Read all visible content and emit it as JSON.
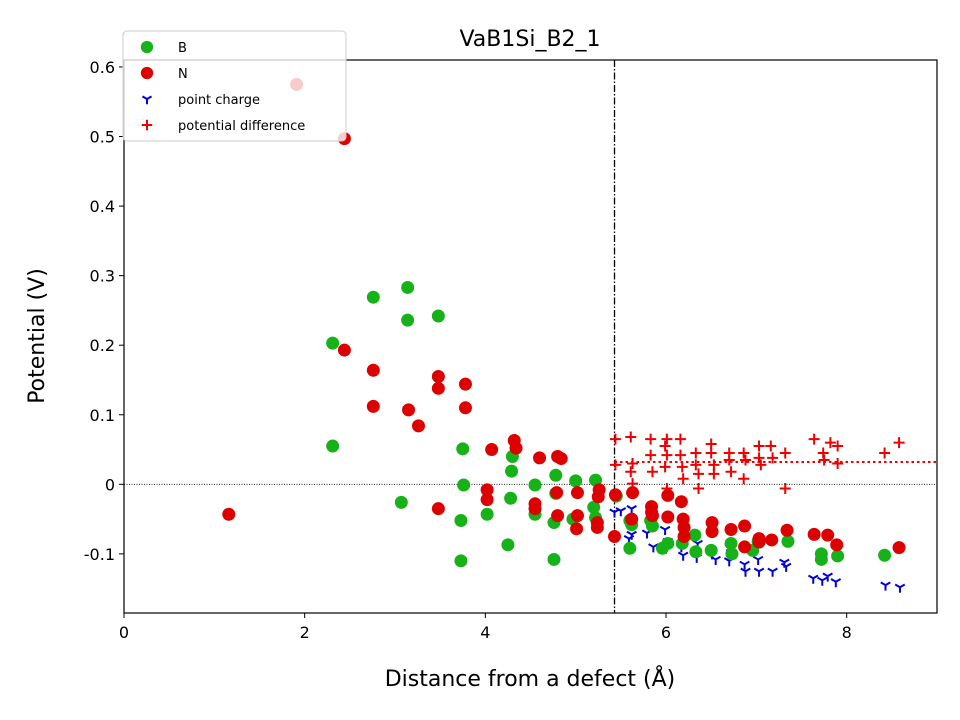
{
  "chart_data": {
    "type": "scatter",
    "title": "VaB1Si_B2_1",
    "xlabel": "Distance from a defect (Å)",
    "ylabel": "Potential (V)",
    "xlim": [
      0,
      9
    ],
    "ylim": [
      -0.185,
      0.61
    ],
    "x_ticks": [
      0,
      2,
      4,
      6,
      8
    ],
    "x_tick_labels": [
      "0",
      "2",
      "4",
      "6",
      "8"
    ],
    "y_ticks": [
      -0.1,
      0,
      0.1,
      0.2,
      0.3,
      0.4,
      0.5,
      0.6
    ],
    "y_tick_labels": [
      "-0.1",
      "0",
      "0.1",
      "0.2",
      "0.3",
      "0.4",
      "0.5",
      "0.6"
    ],
    "legend_position": "top-left",
    "vertical_line_x": 5.43,
    "horizontal_zero_line": true,
    "average_line": {
      "y": 0.032,
      "x_from": 5.43,
      "x_to": 9.0,
      "color": "#ee0000"
    },
    "colors": {
      "B": "#17b21a",
      "N": "#dd0000",
      "point charge": "#0000dd",
      "potential difference": "#ee0000"
    },
    "series": [
      {
        "name": "B",
        "marker": "circle",
        "points": [
          [
            2.31,
            0.203
          ],
          [
            2.31,
            0.055
          ],
          [
            2.76,
            0.269
          ],
          [
            3.14,
            0.283
          ],
          [
            3.14,
            0.236
          ],
          [
            3.48,
            0.242
          ],
          [
            3.07,
            -0.026
          ],
          [
            3.73,
            -0.052
          ],
          [
            3.73,
            -0.11
          ],
          [
            3.75,
            0.051
          ],
          [
            3.76,
            -0.001
          ],
          [
            4.02,
            -0.043
          ],
          [
            4.25,
            -0.087
          ],
          [
            4.28,
            -0.02
          ],
          [
            4.29,
            0.019
          ],
          [
            4.3,
            0.04
          ],
          [
            4.55,
            -0.043
          ],
          [
            4.55,
            -0.001
          ],
          [
            4.76,
            -0.108
          ],
          [
            4.76,
            -0.055
          ],
          [
            4.78,
            0.013
          ],
          [
            4.78,
            -0.013
          ],
          [
            4.97,
            -0.05
          ],
          [
            5.0,
            0.005
          ],
          [
            5.2,
            -0.033
          ],
          [
            5.22,
            0.006
          ],
          [
            5.22,
            -0.048
          ],
          [
            5.45,
            -0.017
          ],
          [
            5.6,
            -0.052
          ],
          [
            5.6,
            -0.092
          ],
          [
            5.62,
            -0.058
          ],
          [
            5.83,
            -0.052
          ],
          [
            5.85,
            -0.06
          ],
          [
            5.96,
            -0.092
          ],
          [
            6.02,
            -0.085
          ],
          [
            6.18,
            -0.085
          ],
          [
            6.32,
            -0.073
          ],
          [
            6.33,
            -0.097
          ],
          [
            6.5,
            -0.095
          ],
          [
            6.72,
            -0.085
          ],
          [
            6.73,
            -0.1
          ],
          [
            6.96,
            -0.095
          ],
          [
            7.02,
            -0.082
          ],
          [
            7.35,
            -0.082
          ],
          [
            7.72,
            -0.1
          ],
          [
            7.72,
            -0.108
          ],
          [
            7.9,
            -0.103
          ],
          [
            8.42,
            -0.102
          ]
        ]
      },
      {
        "name": "N",
        "marker": "circle",
        "points": [
          [
            1.16,
            -0.043
          ],
          [
            1.91,
            0.575
          ],
          [
            2.44,
            0.497
          ],
          [
            2.44,
            0.193
          ],
          [
            2.76,
            0.164
          ],
          [
            2.76,
            0.112
          ],
          [
            3.15,
            0.107
          ],
          [
            3.26,
            0.084
          ],
          [
            3.48,
            0.155
          ],
          [
            3.48,
            0.138
          ],
          [
            3.48,
            -0.035
          ],
          [
            3.78,
            0.144
          ],
          [
            3.78,
            0.11
          ],
          [
            4.02,
            -0.008
          ],
          [
            4.02,
            -0.022
          ],
          [
            4.07,
            0.05
          ],
          [
            4.32,
            0.063
          ],
          [
            4.34,
            0.052
          ],
          [
            4.55,
            -0.028
          ],
          [
            4.55,
            -0.035
          ],
          [
            4.6,
            0.038
          ],
          [
            4.79,
            -0.012
          ],
          [
            4.8,
            -0.045
          ],
          [
            4.8,
            0.04
          ],
          [
            4.84,
            0.037
          ],
          [
            5.01,
            -0.064
          ],
          [
            5.02,
            -0.045
          ],
          [
            5.02,
            -0.012
          ],
          [
            5.24,
            -0.055
          ],
          [
            5.24,
            -0.062
          ],
          [
            5.25,
            -0.018
          ],
          [
            5.26,
            -0.008
          ],
          [
            5.43,
            -0.075
          ],
          [
            5.44,
            -0.015
          ],
          [
            5.62,
            -0.05
          ],
          [
            5.63,
            -0.012
          ],
          [
            5.84,
            -0.032
          ],
          [
            5.84,
            -0.04
          ],
          [
            5.85,
            -0.045
          ],
          [
            6.02,
            -0.047
          ],
          [
            6.02,
            -0.016
          ],
          [
            6.17,
            -0.025
          ],
          [
            6.19,
            -0.05
          ],
          [
            6.2,
            -0.062
          ],
          [
            6.2,
            -0.075
          ],
          [
            6.51,
            -0.055
          ],
          [
            6.51,
            -0.068
          ],
          [
            6.72,
            -0.065
          ],
          [
            6.87,
            -0.06
          ],
          [
            6.87,
            -0.09
          ],
          [
            7.03,
            -0.078
          ],
          [
            7.03,
            -0.083
          ],
          [
            7.17,
            -0.08
          ],
          [
            7.34,
            -0.066
          ],
          [
            7.64,
            -0.072
          ],
          [
            7.79,
            -0.073
          ],
          [
            7.89,
            -0.087
          ],
          [
            8.58,
            -0.091
          ]
        ]
      },
      {
        "name": "point charge",
        "marker": "tri_down",
        "points": [
          [
            5.43,
            -0.04
          ],
          [
            5.5,
            -0.038
          ],
          [
            5.59,
            -0.078
          ],
          [
            5.62,
            -0.035
          ],
          [
            5.62,
            -0.072
          ],
          [
            5.79,
            -0.07
          ],
          [
            5.86,
            -0.09
          ],
          [
            5.99,
            -0.065
          ],
          [
            6.0,
            -0.092
          ],
          [
            6.02,
            -0.082
          ],
          [
            6.17,
            -0.09
          ],
          [
            6.19,
            -0.102
          ],
          [
            6.34,
            -0.105
          ],
          [
            6.35,
            -0.085
          ],
          [
            6.51,
            -0.1
          ],
          [
            6.55,
            -0.108
          ],
          [
            6.7,
            -0.11
          ],
          [
            6.72,
            -0.098
          ],
          [
            6.87,
            -0.115
          ],
          [
            6.88,
            -0.125
          ],
          [
            7.02,
            -0.108
          ],
          [
            7.03,
            -0.125
          ],
          [
            7.18,
            -0.125
          ],
          [
            7.31,
            -0.112
          ],
          [
            7.33,
            -0.118
          ],
          [
            7.63,
            -0.135
          ],
          [
            7.73,
            -0.138
          ],
          [
            7.79,
            -0.132
          ],
          [
            7.88,
            -0.14
          ],
          [
            8.43,
            -0.145
          ],
          [
            8.59,
            -0.148
          ]
        ]
      },
      {
        "name": "potential difference",
        "marker": "plus",
        "points": [
          [
            5.44,
            0.065
          ],
          [
            5.44,
            0.028
          ],
          [
            5.61,
            0.068
          ],
          [
            5.61,
            0.018
          ],
          [
            5.63,
            0.03
          ],
          [
            5.63,
            0.001
          ],
          [
            5.83,
            0.065
          ],
          [
            5.83,
            0.042
          ],
          [
            5.85,
            0.018
          ],
          [
            5.99,
            0.055
          ],
          [
            5.99,
            0.025
          ],
          [
            6.01,
            0.065
          ],
          [
            6.01,
            0.042
          ],
          [
            6.01,
            -0.006
          ],
          [
            6.16,
            0.065
          ],
          [
            6.16,
            0.042
          ],
          [
            6.18,
            0.025
          ],
          [
            6.19,
            0.008
          ],
          [
            6.33,
            0.045
          ],
          [
            6.33,
            0.028
          ],
          [
            6.36,
            0.015
          ],
          [
            6.36,
            -0.006
          ],
          [
            6.5,
            0.058
          ],
          [
            6.5,
            0.045
          ],
          [
            6.53,
            0.028
          ],
          [
            6.53,
            0.015
          ],
          [
            6.7,
            0.045
          ],
          [
            6.7,
            0.035
          ],
          [
            6.72,
            0.018
          ],
          [
            6.86,
            0.045
          ],
          [
            6.86,
            0.008
          ],
          [
            6.88,
            0.035
          ],
          [
            7.03,
            0.055
          ],
          [
            7.03,
            0.038
          ],
          [
            7.05,
            0.028
          ],
          [
            7.16,
            0.055
          ],
          [
            7.18,
            0.038
          ],
          [
            7.32,
            0.045
          ],
          [
            7.32,
            -0.006
          ],
          [
            7.64,
            0.065
          ],
          [
            7.74,
            0.045
          ],
          [
            7.75,
            0.035
          ],
          [
            7.82,
            0.06
          ],
          [
            7.9,
            0.055
          ],
          [
            7.9,
            0.03
          ],
          [
            8.42,
            0.045
          ],
          [
            8.58,
            0.06
          ]
        ]
      }
    ]
  }
}
